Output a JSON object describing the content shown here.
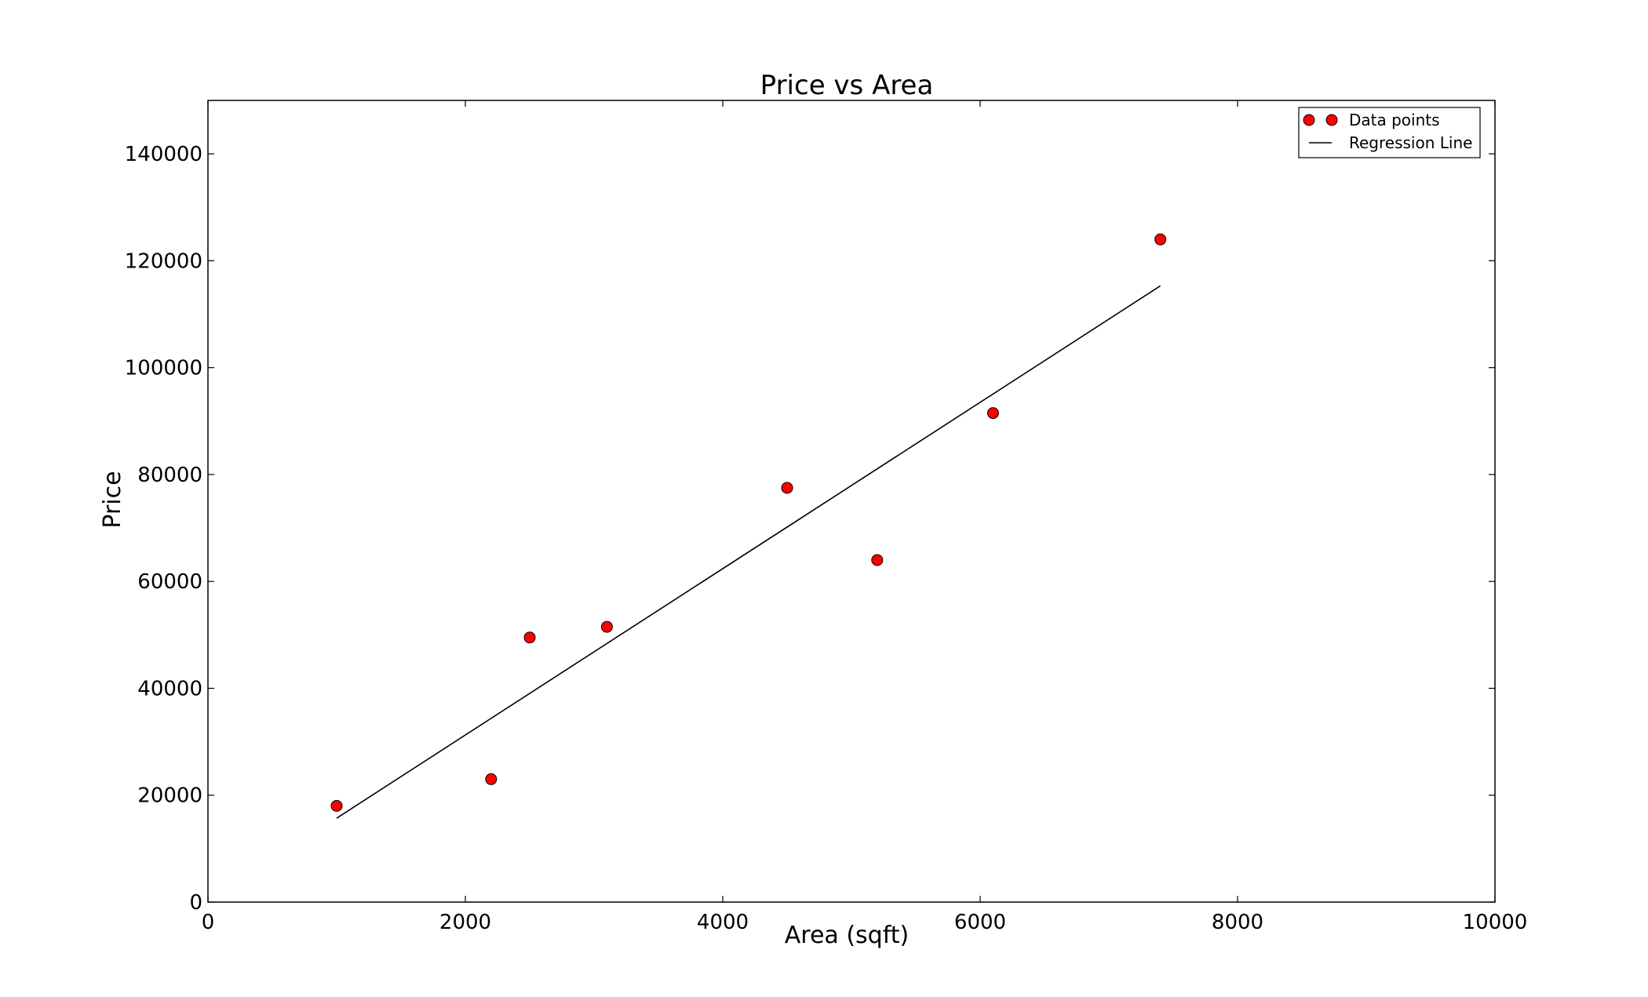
{
  "chart_data": {
    "type": "scatter",
    "title": "Price vs Area",
    "xlabel": "Area (sqft)",
    "ylabel": "Price",
    "xlim": [
      0,
      10000
    ],
    "ylim": [
      0,
      150000
    ],
    "xticks": [
      0,
      2000,
      4000,
      6000,
      8000,
      10000
    ],
    "yticks": [
      0,
      20000,
      40000,
      60000,
      80000,
      100000,
      120000,
      140000
    ],
    "grid": false,
    "legend_position": "top-right",
    "series": [
      {
        "name": "Data points",
        "kind": "scatter",
        "color": "#ff0000",
        "x": [
          1000,
          2200,
          2500,
          3100,
          4500,
          5200,
          6100,
          7400
        ],
        "y": [
          18000,
          23000,
          49500,
          51500,
          77500,
          64000,
          91500,
          124000
        ]
      },
      {
        "name": "Regression Line",
        "kind": "line",
        "color": "#000000",
        "x": [
          1000,
          7400
        ],
        "y": [
          15700,
          115300
        ]
      }
    ]
  }
}
